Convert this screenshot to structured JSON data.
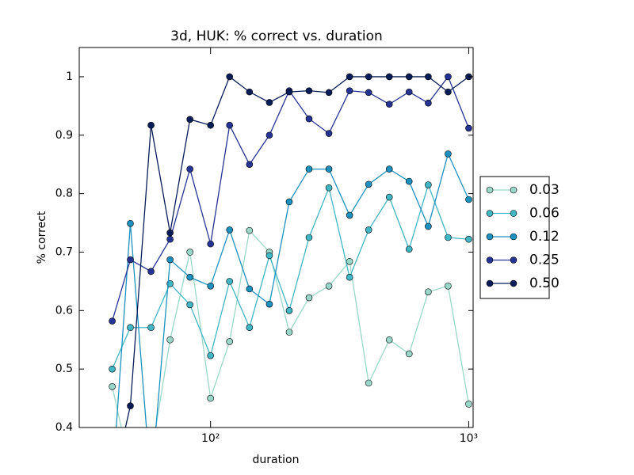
{
  "chart_data": {
    "type": "line",
    "title": "3d, HUK: % correct vs. duration",
    "x_label": "duration",
    "y_label": "% correct",
    "x": [
      41.6,
      48.9,
      58.8,
      69.7,
      83.2,
      100,
      118.5,
      141.5,
      169,
      201.7,
      240.7,
      287.4,
      345.6,
      409.6,
      492.5,
      587.6,
      697,
      832,
      1000
    ],
    "xlim": [
      31,
      1040
    ],
    "xscale": "log",
    "xticks": [
      {
        "value": 100,
        "label": "10²"
      },
      {
        "value": 1000,
        "label": "10³"
      }
    ],
    "ylim": [
      0.4,
      1.05
    ],
    "yticks": [
      0.4,
      0.5,
      0.6,
      0.7,
      0.8,
      0.9,
      1.0
    ],
    "yticks_labels_note_free": null,
    "series": [
      {
        "name": "0.03",
        "color": "#99d8c9",
        "values": [
          0.47,
          0.33,
          0.35,
          0.55,
          0.7,
          0.45,
          0.547,
          0.737,
          0.7,
          0.563,
          0.622,
          0.642,
          0.684,
          0.476,
          0.55,
          0.526,
          0.632,
          0.642,
          0.44
        ]
      },
      {
        "name": "0.06",
        "color": "#41b6c4",
        "values": [
          0.5,
          0.571,
          0.571,
          0.646,
          0.61,
          0.523,
          0.65,
          0.571,
          0.694,
          0.6,
          0.725,
          0.81,
          0.657,
          0.738,
          0.794,
          0.705,
          0.815,
          0.725,
          0.722
        ]
      },
      {
        "name": "0.12",
        "color": "#1d91c0",
        "values": [
          0.3,
          0.749,
          0.3,
          0.687,
          0.657,
          0.642,
          0.738,
          0.637,
          0.611,
          0.786,
          0.842,
          0.842,
          0.763,
          0.816,
          0.842,
          0.821,
          0.744,
          0.868,
          0.79
        ]
      },
      {
        "name": "0.25",
        "color": "#253494",
        "values": [
          0.582,
          0.687,
          0.667,
          0.722,
          0.842,
          0.714,
          0.917,
          0.85,
          0.9,
          0.976,
          0.928,
          0.903,
          0.976,
          0.973,
          0.953,
          0.974,
          0.955,
          1.0,
          0.912
        ]
      },
      {
        "name": "0.50",
        "color": "#081d58",
        "values": [
          0.3,
          0.437,
          0.917,
          0.733,
          0.927,
          0.917,
          1.0,
          0.974,
          0.956,
          0.974,
          0.976,
          0.973,
          1.0,
          1.0,
          1.0,
          1.0,
          1.0,
          0.974,
          1.0
        ]
      }
    ]
  }
}
